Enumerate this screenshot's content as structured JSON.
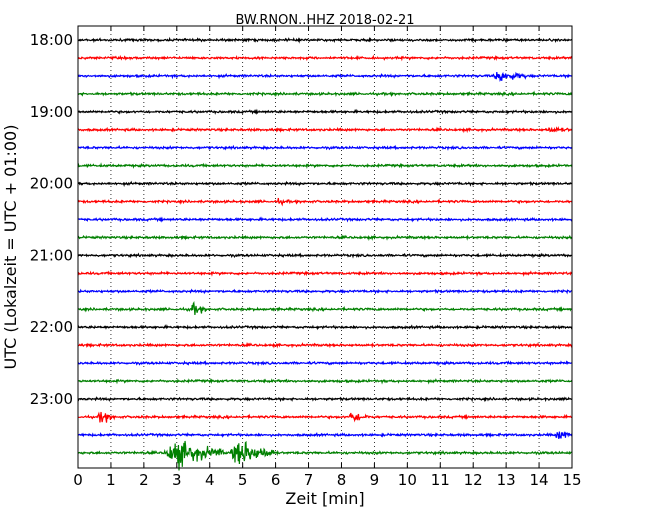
{
  "chart_data": {
    "type": "line",
    "title": "BW.RNON..HHZ 2018-02-21",
    "xlabel": "Zeit  [min]",
    "ylabel": "UTC (Lokalzeit = UTC + 01:00)",
    "xlim": [
      0,
      15
    ],
    "x_ticks": [
      "0",
      "1",
      "2",
      "3",
      "4",
      "5",
      "6",
      "7",
      "8",
      "9",
      "10",
      "11",
      "12",
      "13",
      "14",
      "15"
    ],
    "y_tick_labels": [
      "18:00",
      "19:00",
      "20:00",
      "21:00",
      "22:00",
      "23:00"
    ],
    "trace_start_times": [
      "18:00",
      "18:15",
      "18:30",
      "18:45",
      "19:00",
      "19:15",
      "19:30",
      "19:45",
      "20:00",
      "20:15",
      "20:30",
      "20:45",
      "21:00",
      "21:15",
      "21:30",
      "21:45",
      "22:00",
      "22:15",
      "22:30",
      "22:45",
      "23:00",
      "23:15",
      "23:30",
      "23:45"
    ],
    "trace_colors": [
      "#000000",
      "#ff0000",
      "#0000ff",
      "#008000"
    ],
    "trace_duration_min": 15,
    "grid": true,
    "events": [
      {
        "trace": "18:30",
        "x_start": 12.6,
        "x_end": 13.6,
        "amplitude": "small"
      },
      {
        "trace": "19:15",
        "x_start": 14.2,
        "x_end": 15.0,
        "amplitude": "tiny"
      },
      {
        "trace": "20:15",
        "x_start": 6.0,
        "x_end": 6.4,
        "amplitude": "tiny"
      },
      {
        "trace": "21:45",
        "x_start": 3.35,
        "x_end": 3.9,
        "amplitude": "small"
      },
      {
        "trace": "23:15",
        "x_start": 0.6,
        "x_end": 1.1,
        "amplitude": "small"
      },
      {
        "trace": "23:15",
        "x_start": 8.2,
        "x_end": 8.8,
        "amplitude": "small"
      },
      {
        "trace": "23:30",
        "x_start": 14.5,
        "x_end": 15.0,
        "amplitude": "small"
      },
      {
        "trace": "23:45",
        "x_start": 2.6,
        "x_end": 4.4,
        "amplitude": "large"
      },
      {
        "trace": "23:45",
        "x_start": 4.6,
        "x_end": 6.0,
        "amplitude": "large"
      }
    ]
  }
}
